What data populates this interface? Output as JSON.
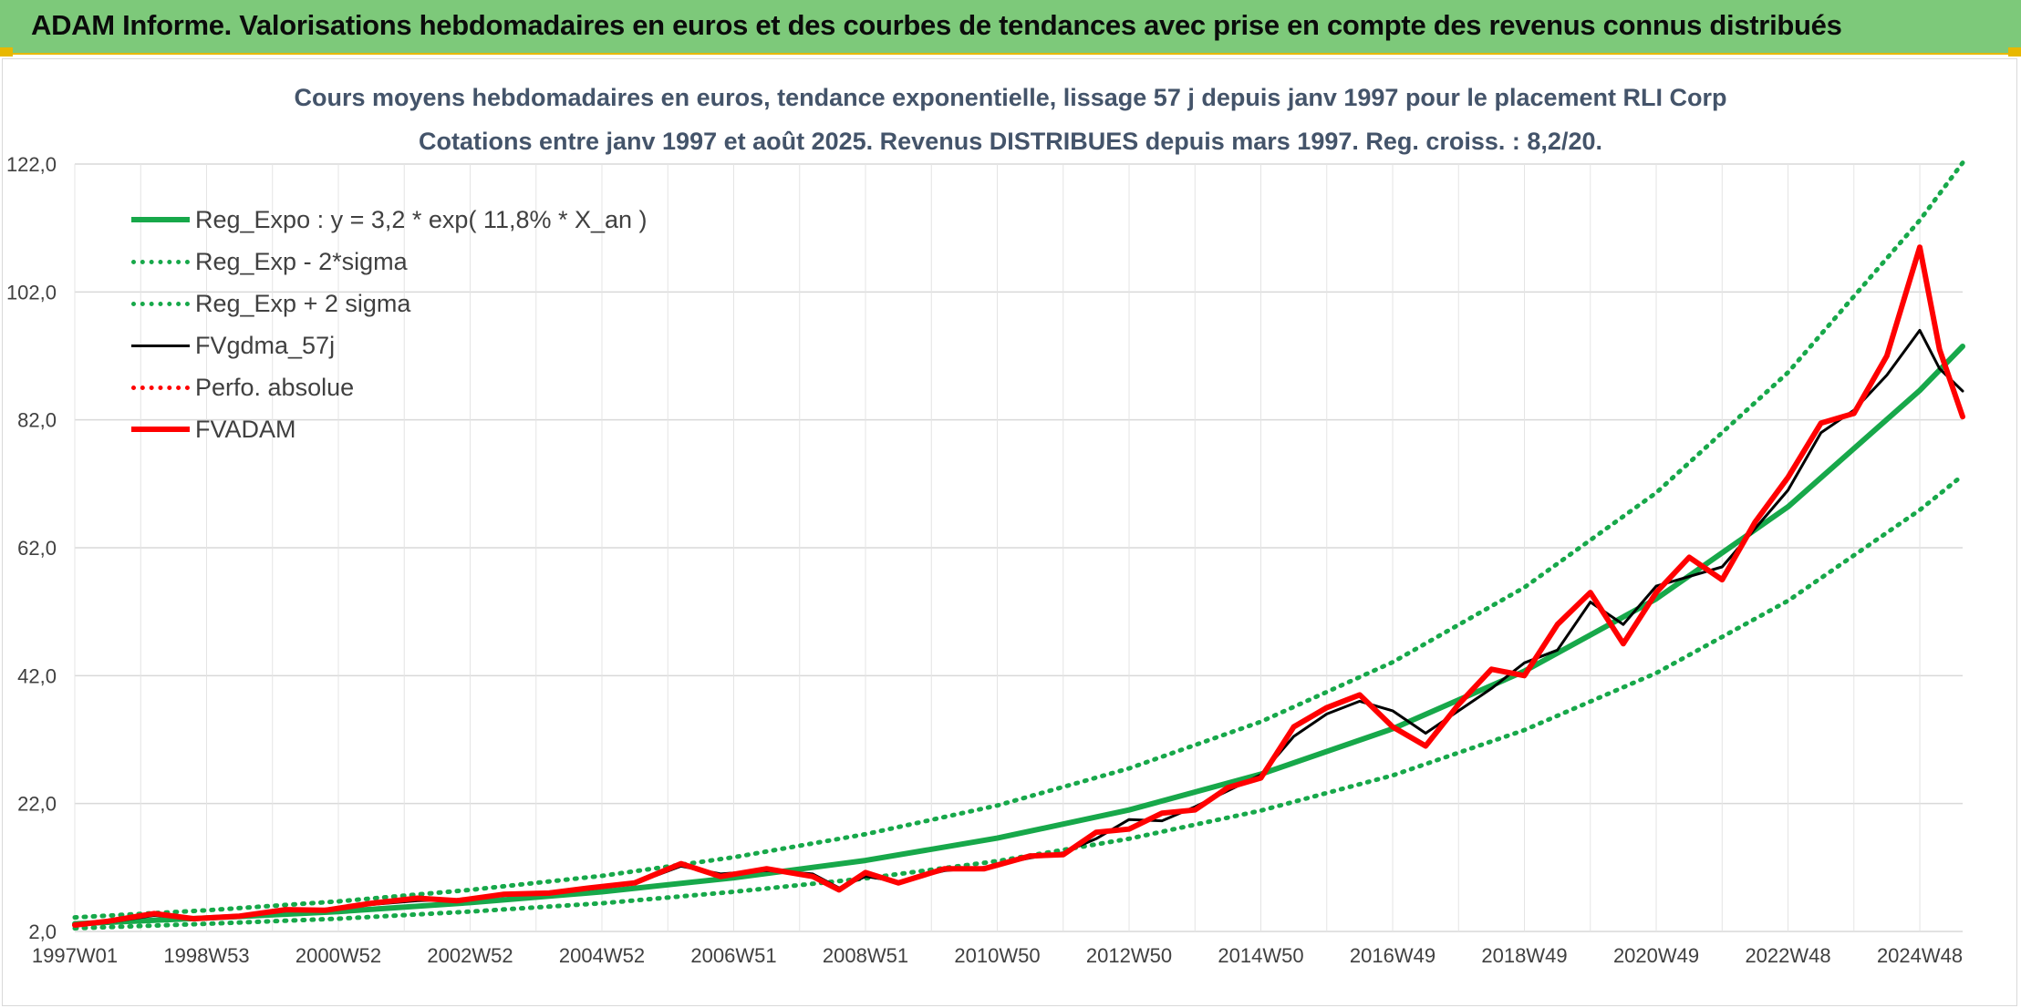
{
  "banner": {
    "title": "ADAM Informe. Valorisations hebdomadaires en euros et des courbes de tendances avec prise en compte des revenus connus distribués"
  },
  "chart_data": {
    "type": "line",
    "title": "Cours moyens hebdomadaires en euros, tendance exponentielle, lissage 57 j depuis janv 1997 pour le placement RLI Corp",
    "subtitle": "Cotations entre janv 1997 et août 2025. Revenus DISTRIBUES depuis mars 1997. Reg. croiss. : 8,2/20.",
    "xlabel": "",
    "ylabel": "",
    "ylim": [
      2,
      122
    ],
    "yticks": [
      "2,0",
      "22,0",
      "42,0",
      "62,0",
      "82,0",
      "102,0",
      "122,0"
    ],
    "xlim": [
      1997.0,
      2025.65
    ],
    "xticks": [
      {
        "x": 1997.0,
        "label": "1997W01"
      },
      {
        "x": 1999.0,
        "label": "1998W53"
      },
      {
        "x": 2001.0,
        "label": "2000W52"
      },
      {
        "x": 2003.0,
        "label": "2002W52"
      },
      {
        "x": 2005.0,
        "label": "2004W52"
      },
      {
        "x": 2007.0,
        "label": "2006W51"
      },
      {
        "x": 2009.0,
        "label": "2008W51"
      },
      {
        "x": 2011.0,
        "label": "2010W50"
      },
      {
        "x": 2013.0,
        "label": "2012W50"
      },
      {
        "x": 2015.0,
        "label": "2014W50"
      },
      {
        "x": 2017.0,
        "label": "2016W49"
      },
      {
        "x": 2019.0,
        "label": "2018W49"
      },
      {
        "x": 2021.0,
        "label": "2020W49"
      },
      {
        "x": 2023.0,
        "label": "2022W48"
      },
      {
        "x": 2025.0,
        "label": "2024W48"
      }
    ],
    "grid": true,
    "legend_position": "top-left",
    "series": [
      {
        "name": "Reg_Expo : y = 3,2 * exp( 11,8% *  X_an )",
        "color": "#17a84a",
        "style": "solid",
        "x": [
          1997,
          1999,
          2001,
          2003,
          2005,
          2007,
          2009,
          2011,
          2013,
          2015,
          2017,
          2019,
          2021,
          2023,
          2025,
          2025.65
        ],
        "y": [
          3.2,
          4.1,
          5.1,
          6.5,
          8.2,
          10.4,
          13.1,
          16.6,
          21.0,
          26.6,
          33.7,
          42.7,
          54.0,
          68.4,
          86.6,
          93.5
        ]
      },
      {
        "name": "Reg_Exp - 2*sigma",
        "color": "#17a84a",
        "style": "dotted",
        "x": [
          1997,
          1999,
          2001,
          2003,
          2005,
          2007,
          2009,
          2011,
          2013,
          2015,
          2017,
          2019,
          2021,
          2023,
          2025,
          2025.65
        ],
        "y": [
          2.5,
          3.2,
          4.0,
          5.1,
          6.4,
          8.2,
          10.3,
          13.0,
          16.5,
          20.9,
          26.4,
          33.5,
          42.4,
          53.7,
          67.9,
          73.3
        ]
      },
      {
        "name": "Reg_Exp + 2 sigma",
        "color": "#17a84a",
        "style": "dotted",
        "x": [
          1997,
          1999,
          2001,
          2003,
          2005,
          2007,
          2009,
          2011,
          2013,
          2015,
          2017,
          2019,
          2021,
          2023,
          2025,
          2025.65
        ],
        "y": [
          4.2,
          5.3,
          6.7,
          8.5,
          10.7,
          13.6,
          17.2,
          21.7,
          27.5,
          34.8,
          44.1,
          55.8,
          70.6,
          89.4,
          113.2,
          122.2
        ]
      },
      {
        "name": "FVgdma_57j",
        "color": "#000000",
        "style": "solid",
        "x": [
          1997,
          1997.5,
          1998.2,
          1998.8,
          1999.5,
          2000.2,
          2000.8,
          2001.5,
          2002.2,
          2002.8,
          2003.5,
          2004.2,
          2004.8,
          2005.5,
          2006.2,
          2006.8,
          2007.5,
          2008.2,
          2008.6,
          2009.0,
          2009.5,
          2010.2,
          2010.8,
          2011.5,
          2012.0,
          2012.5,
          2013.0,
          2013.5,
          2014.0,
          2014.5,
          2015.0,
          2015.5,
          2016.0,
          2016.5,
          2017.0,
          2017.5,
          2018.0,
          2018.5,
          2019.0,
          2019.5,
          2020.0,
          2020.5,
          2021.0,
          2021.5,
          2022.0,
          2022.5,
          2023.0,
          2023.5,
          2024.0,
          2024.5,
          2025.0,
          2025.3,
          2025.65
        ],
        "y": [
          3.0,
          3.4,
          4.5,
          4.1,
          4.3,
          5.2,
          5.5,
          6.2,
          6.8,
          7.0,
          7.6,
          8.2,
          8.6,
          9.5,
          12.2,
          11.0,
          11.5,
          11.0,
          8.8,
          10.6,
          9.8,
          11.5,
          12.0,
          13.5,
          14.3,
          16.5,
          19.5,
          19.3,
          21.5,
          24.0,
          26.5,
          32.5,
          36.0,
          38.0,
          36.5,
          33.0,
          36.5,
          40.0,
          44.0,
          46.0,
          53.5,
          50.0,
          56.0,
          57.5,
          59.0,
          65.0,
          71.0,
          80.0,
          83.5,
          89.0,
          96.0,
          90.0,
          86.5
        ]
      },
      {
        "name": "Perfo. absolue",
        "color": "#ff0000",
        "style": "dotted",
        "x": [],
        "y": []
      },
      {
        "name": "FVADAM",
        "color": "#ff0000",
        "style": "solid",
        "x": [
          1997,
          1997.5,
          1998.2,
          1998.8,
          1999.5,
          2000.2,
          2000.8,
          2001.5,
          2002.2,
          2002.8,
          2003.5,
          2004.2,
          2004.8,
          2005.5,
          2006.2,
          2006.8,
          2007.5,
          2008.2,
          2008.6,
          2009.0,
          2009.5,
          2010.2,
          2010.8,
          2011.5,
          2012.0,
          2012.5,
          2013.0,
          2013.5,
          2014.0,
          2014.5,
          2015.0,
          2015.5,
          2016.0,
          2016.5,
          2017.0,
          2017.5,
          2018.0,
          2018.5,
          2019.0,
          2019.5,
          2020.0,
          2020.5,
          2021.0,
          2021.5,
          2022.0,
          2022.5,
          2023.0,
          2023.5,
          2024.0,
          2024.5,
          2025.0,
          2025.3,
          2025.65
        ],
        "y": [
          3.0,
          3.6,
          4.8,
          4.0,
          4.4,
          5.4,
          5.3,
          6.4,
          7.2,
          6.8,
          7.8,
          8.0,
          8.8,
          9.6,
          12.6,
          10.6,
          11.8,
          10.6,
          8.5,
          11.2,
          9.6,
          11.8,
          11.8,
          13.8,
          14.0,
          17.5,
          18.0,
          20.5,
          21.0,
          24.5,
          26.0,
          34.0,
          37.0,
          39.0,
          34.0,
          31.0,
          37.5,
          43.0,
          42.0,
          50.0,
          55.0,
          47.0,
          55.0,
          60.5,
          57.0,
          66.0,
          73.0,
          81.5,
          83.0,
          92.0,
          109.0,
          93.0,
          82.5
        ]
      }
    ]
  }
}
